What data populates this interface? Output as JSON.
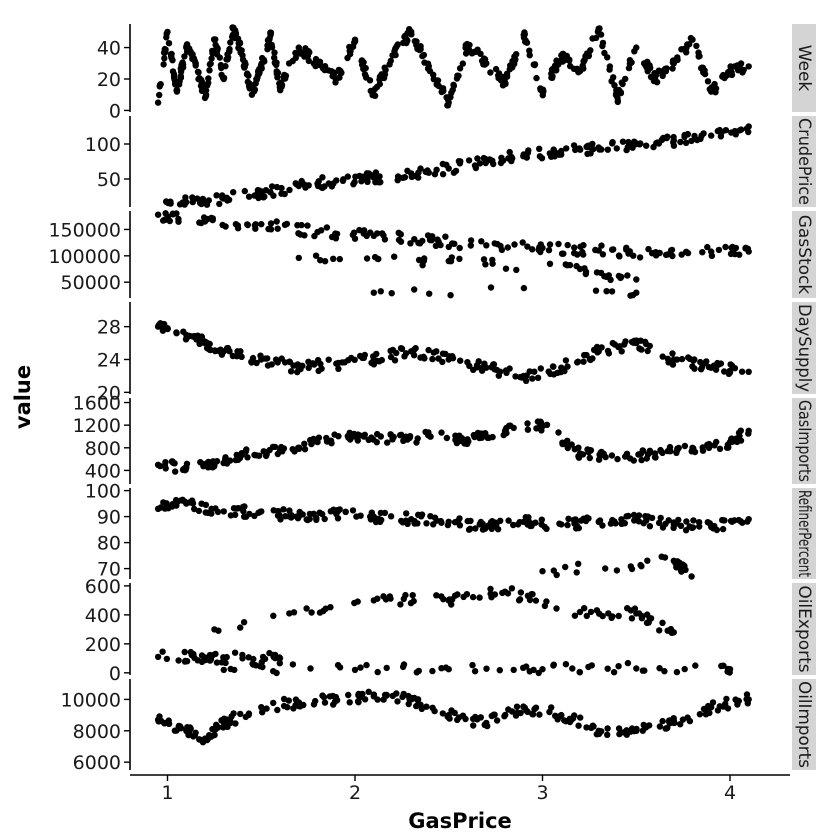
{
  "chart_data": {
    "type": "scatter",
    "faceted": true,
    "xlabel": "GasPrice",
    "ylabel": "value",
    "x_range": [
      0.8,
      4.32
    ],
    "x_ticks": [
      1,
      2,
      3,
      4
    ],
    "panels": [
      {
        "label": "Week",
        "ylim": [
          -1,
          55
        ],
        "y_ticks": [
          0,
          20,
          40
        ],
        "y_tick_labels": [
          "0",
          "20",
          "40"
        ],
        "sample_points": [
          [
            0.95,
            5
          ],
          [
            1.0,
            50
          ],
          [
            1.05,
            12
          ],
          [
            1.1,
            40
          ],
          [
            1.15,
            30
          ],
          [
            1.2,
            8
          ],
          [
            1.25,
            45
          ],
          [
            1.3,
            20
          ],
          [
            1.35,
            52
          ],
          [
            1.4,
            35
          ],
          [
            1.45,
            10
          ],
          [
            1.5,
            28
          ],
          [
            1.55,
            48
          ],
          [
            1.6,
            15
          ],
          [
            1.7,
            40
          ],
          [
            1.8,
            30
          ],
          [
            1.9,
            20
          ],
          [
            2.0,
            45
          ],
          [
            2.1,
            10
          ],
          [
            2.2,
            35
          ],
          [
            2.3,
            50
          ],
          [
            2.4,
            25
          ],
          [
            2.5,
            5
          ],
          [
            2.6,
            42
          ],
          [
            2.7,
            30
          ],
          [
            2.8,
            18
          ],
          [
            2.9,
            48
          ],
          [
            3.0,
            12
          ],
          [
            3.1,
            35
          ],
          [
            3.2,
            25
          ],
          [
            3.3,
            52
          ],
          [
            3.4,
            8
          ],
          [
            3.5,
            40
          ],
          [
            3.6,
            20
          ],
          [
            3.7,
            30
          ],
          [
            3.8,
            45
          ],
          [
            3.9,
            12
          ],
          [
            4.0,
            25
          ],
          [
            4.1,
            28
          ]
        ]
      },
      {
        "label": "CrudePrice",
        "ylim": [
          10,
          140
        ],
        "y_ticks": [
          50,
          100
        ],
        "y_tick_labels": [
          "50",
          "100"
        ],
        "sample_points": [
          [
            0.95,
            12
          ],
          [
            1.1,
            17
          ],
          [
            1.3,
            22
          ],
          [
            1.5,
            30
          ],
          [
            1.7,
            40
          ],
          [
            1.9,
            48
          ],
          [
            2.1,
            52
          ],
          [
            2.3,
            58
          ],
          [
            2.5,
            65
          ],
          [
            2.7,
            75
          ],
          [
            2.9,
            85
          ],
          [
            3.1,
            90
          ],
          [
            3.3,
            95
          ],
          [
            3.5,
            100
          ],
          [
            3.7,
            105
          ],
          [
            3.9,
            112
          ],
          [
            4.1,
            125
          ]
        ]
      },
      {
        "label": "GasStock",
        "ylim": [
          20000,
          185000
        ],
        "y_ticks": [
          50000,
          100000,
          150000
        ],
        "y_tick_labels": [
          "50000",
          "100000",
          "150000"
        ],
        "sample_points": [
          [
            0.95,
            178000
          ],
          [
            1.2,
            165000
          ],
          [
            1.5,
            160000
          ],
          [
            1.8,
            145000
          ],
          [
            2.1,
            138000
          ],
          [
            2.4,
            130000
          ],
          [
            2.7,
            120000
          ],
          [
            3.0,
            115000
          ],
          [
            3.3,
            110000
          ],
          [
            3.6,
            105000
          ],
          [
            3.9,
            108000
          ],
          [
            4.1,
            108000
          ],
          [
            1.7,
            96000
          ],
          [
            2.5,
            90000
          ],
          [
            3.2,
            75000
          ],
          [
            3.5,
            55000
          ],
          [
            2.1,
            30000
          ],
          [
            3.5,
            30000
          ]
        ]
      },
      {
        "label": "DaySupply",
        "ylim": [
          19.8,
          31
        ],
        "y_ticks": [
          20,
          24,
          28
        ],
        "y_tick_labels": [
          "20",
          "24",
          "28"
        ],
        "sample_points": [
          [
            0.95,
            28
          ],
          [
            1.1,
            27
          ],
          [
            1.2,
            26
          ],
          [
            1.3,
            25
          ],
          [
            1.5,
            24
          ],
          [
            1.7,
            23
          ],
          [
            1.9,
            23.5
          ],
          [
            2.1,
            24
          ],
          [
            2.3,
            25
          ],
          [
            2.5,
            24
          ],
          [
            2.7,
            23
          ],
          [
            2.9,
            22
          ],
          [
            3.1,
            23
          ],
          [
            3.3,
            25
          ],
          [
            3.5,
            26
          ],
          [
            3.7,
            24
          ],
          [
            3.9,
            23
          ],
          [
            4.1,
            22.5
          ]
        ]
      },
      {
        "label": "GasImports",
        "ylim": [
          160,
          1680
        ],
        "y_ticks": [
          400,
          800,
          1200,
          1600
        ],
        "y_tick_labels": [
          "400",
          "800",
          "1200",
          "1600"
        ],
        "sample_points": [
          [
            0.95,
            500
          ],
          [
            1.1,
            450
          ],
          [
            1.25,
            500
          ],
          [
            1.4,
            700
          ],
          [
            1.6,
            750
          ],
          [
            1.8,
            900
          ],
          [
            2.0,
            1000
          ],
          [
            2.2,
            950
          ],
          [
            2.4,
            1000
          ],
          [
            2.6,
            950
          ],
          [
            2.8,
            1100
          ],
          [
            3.0,
            1200
          ],
          [
            3.2,
            700
          ],
          [
            3.4,
            600
          ],
          [
            3.6,
            700
          ],
          [
            3.8,
            800
          ],
          [
            4.0,
            900
          ],
          [
            4.1,
            1100
          ]
        ]
      },
      {
        "label": "RefinerPercent",
        "ylim": [
          66,
          101
        ],
        "y_ticks": [
          70,
          80,
          90,
          100
        ],
        "y_tick_labels": [
          "70",
          "80",
          "90",
          "100"
        ],
        "sample_points": [
          [
            0.95,
            93
          ],
          [
            1.1,
            95
          ],
          [
            1.3,
            92
          ],
          [
            1.5,
            92
          ],
          [
            1.7,
            90
          ],
          [
            1.9,
            91
          ],
          [
            2.1,
            90
          ],
          [
            2.3,
            89
          ],
          [
            2.5,
            88
          ],
          [
            2.7,
            86
          ],
          [
            2.9,
            88
          ],
          [
            3.1,
            87
          ],
          [
            3.3,
            88
          ],
          [
            3.5,
            89
          ],
          [
            3.7,
            87
          ],
          [
            3.9,
            86
          ],
          [
            4.1,
            89
          ],
          [
            3.0,
            69
          ],
          [
            3.7,
            73
          ],
          [
            3.8,
            66
          ]
        ]
      },
      {
        "label": "OilExports",
        "ylim": [
          -15,
          620
        ],
        "y_ticks": [
          0,
          200,
          400,
          600
        ],
        "y_tick_labels": [
          "0",
          "200",
          "400",
          "600"
        ],
        "sample_points": [
          [
            0.95,
            110
          ],
          [
            1.2,
            105
          ],
          [
            1.4,
            100
          ],
          [
            1.6,
            100
          ],
          [
            1.3,
            20
          ],
          [
            2.0,
            20
          ],
          [
            2.5,
            25
          ],
          [
            3.0,
            25
          ],
          [
            3.5,
            30
          ],
          [
            4.0,
            25
          ],
          [
            1.25,
            300
          ],
          [
            2.1,
            500
          ],
          [
            2.5,
            500
          ],
          [
            2.8,
            560
          ],
          [
            3.2,
            420
          ],
          [
            3.5,
            410
          ],
          [
            3.7,
            280
          ]
        ]
      },
      {
        "label": "OilImports",
        "ylim": [
          5500,
          11300
        ],
        "y_ticks": [
          6000,
          8000,
          10000
        ],
        "y_tick_labels": [
          "6000",
          "8000",
          "10000"
        ],
        "sample_points": [
          [
            0.95,
            8700
          ],
          [
            1.1,
            8000
          ],
          [
            1.2,
            7500
          ],
          [
            1.3,
            8500
          ],
          [
            1.5,
            9500
          ],
          [
            1.7,
            9800
          ],
          [
            1.9,
            10000
          ],
          [
            2.1,
            10200
          ],
          [
            2.3,
            10000
          ],
          [
            2.5,
            9000
          ],
          [
            2.7,
            8500
          ],
          [
            2.9,
            9500
          ],
          [
            3.1,
            9000
          ],
          [
            3.3,
            8000
          ],
          [
            3.5,
            8000
          ],
          [
            3.7,
            8500
          ],
          [
            3.9,
            9500
          ],
          [
            4.1,
            10000
          ]
        ]
      }
    ]
  }
}
